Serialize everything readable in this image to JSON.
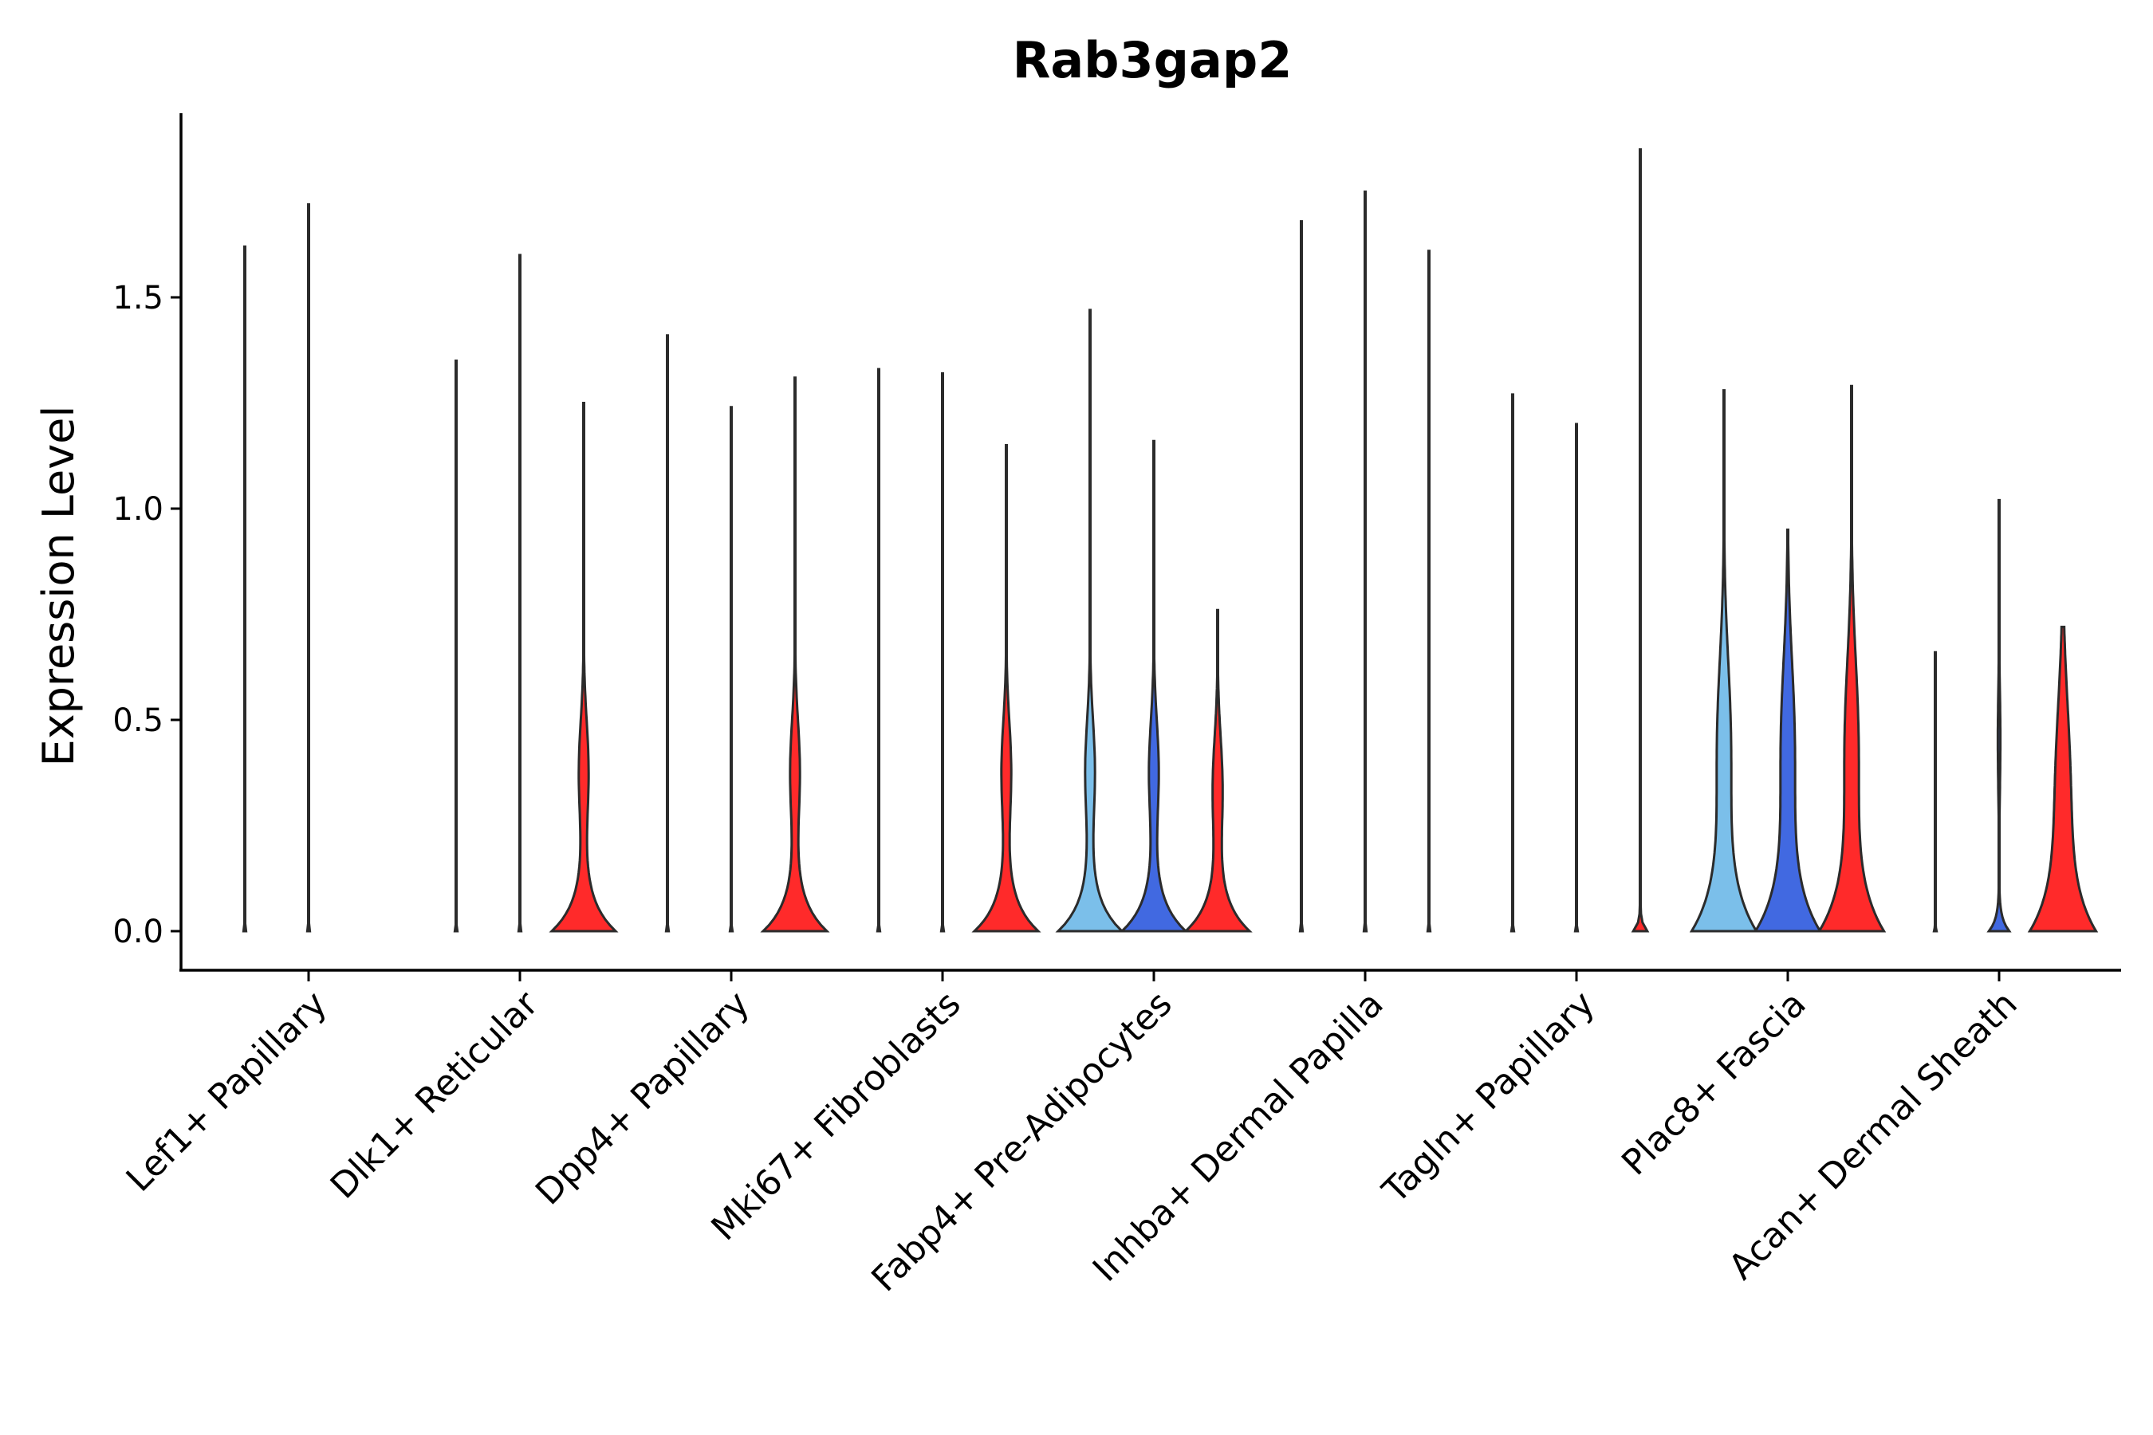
{
  "chart_data": {
    "type": "violin",
    "title": "Rab3gap2",
    "xlabel": "",
    "ylabel": "Expression Level",
    "ylim": [
      -0.09,
      1.94
    ],
    "yticks": [
      0.0,
      0.5,
      1.0,
      1.5
    ],
    "ytick_labels": [
      "0.0",
      "0.5",
      "1.0",
      "1.5"
    ],
    "grid": false,
    "legend": "none",
    "groups": [
      {
        "name": "group-light-blue",
        "color": "#7bbfea"
      },
      {
        "name": "group-blue",
        "color": "#4169e1"
      },
      {
        "name": "group-red",
        "color": "#ff2a2a"
      }
    ],
    "categories": [
      "Lef1+ Papillary",
      "Dlk1+ Reticular",
      "Dpp4+ Papillary",
      "Mki67+ Fibroblasts",
      "Fabp4+ Pre-Adipocytes",
      "Inhba+ Dermal Papilla",
      "Tagln+ Papillary",
      "Plac8+ Fascia",
      "Acan+ Dermal Sheath"
    ],
    "violins": [
      {
        "category": 0,
        "group": 0,
        "max": 1.62,
        "profile": "spike"
      },
      {
        "category": 0,
        "group": 1,
        "max": 1.72,
        "profile": "spike"
      },
      {
        "category": 1,
        "group": 0,
        "max": 1.35,
        "profile": "spike"
      },
      {
        "category": 1,
        "group": 1,
        "max": 1.6,
        "profile": "spike"
      },
      {
        "category": 1,
        "group": 2,
        "max": 1.25,
        "profile": "zero-heavy"
      },
      {
        "category": 2,
        "group": 0,
        "max": 1.41,
        "profile": "spike"
      },
      {
        "category": 2,
        "group": 1,
        "max": 1.24,
        "profile": "spike"
      },
      {
        "category": 2,
        "group": 2,
        "max": 1.31,
        "profile": "zero-heavy"
      },
      {
        "category": 3,
        "group": 0,
        "max": 1.33,
        "profile": "spike"
      },
      {
        "category": 3,
        "group": 1,
        "max": 1.32,
        "profile": "spike"
      },
      {
        "category": 3,
        "group": 2,
        "max": 1.15,
        "profile": "zero-heavy"
      },
      {
        "category": 4,
        "group": 0,
        "max": 1.47,
        "profile": "zero-heavy"
      },
      {
        "category": 4,
        "group": 1,
        "max": 1.16,
        "profile": "zero-heavy"
      },
      {
        "category": 4,
        "group": 2,
        "max": 0.76,
        "profile": "zero-heavy"
      },
      {
        "category": 5,
        "group": 0,
        "max": 1.68,
        "profile": "spike"
      },
      {
        "category": 5,
        "group": 1,
        "max": 1.75,
        "profile": "spike"
      },
      {
        "category": 5,
        "group": 2,
        "max": 1.61,
        "profile": "spike"
      },
      {
        "category": 6,
        "group": 0,
        "max": 1.27,
        "profile": "spike"
      },
      {
        "category": 6,
        "group": 1,
        "max": 1.2,
        "profile": "spike"
      },
      {
        "category": 6,
        "group": 2,
        "max": 1.85,
        "profile": "tiny"
      },
      {
        "category": 7,
        "group": 0,
        "max": 1.28,
        "profile": "broad"
      },
      {
        "category": 7,
        "group": 1,
        "max": 0.95,
        "profile": "broad"
      },
      {
        "category": 7,
        "group": 2,
        "max": 1.29,
        "profile": "broad"
      },
      {
        "category": 8,
        "group": 0,
        "max": 0.66,
        "profile": "spike"
      },
      {
        "category": 8,
        "group": 1,
        "max": 1.02,
        "profile": "small"
      },
      {
        "category": 8,
        "group": 2,
        "max": 0.72,
        "profile": "broad"
      }
    ]
  }
}
